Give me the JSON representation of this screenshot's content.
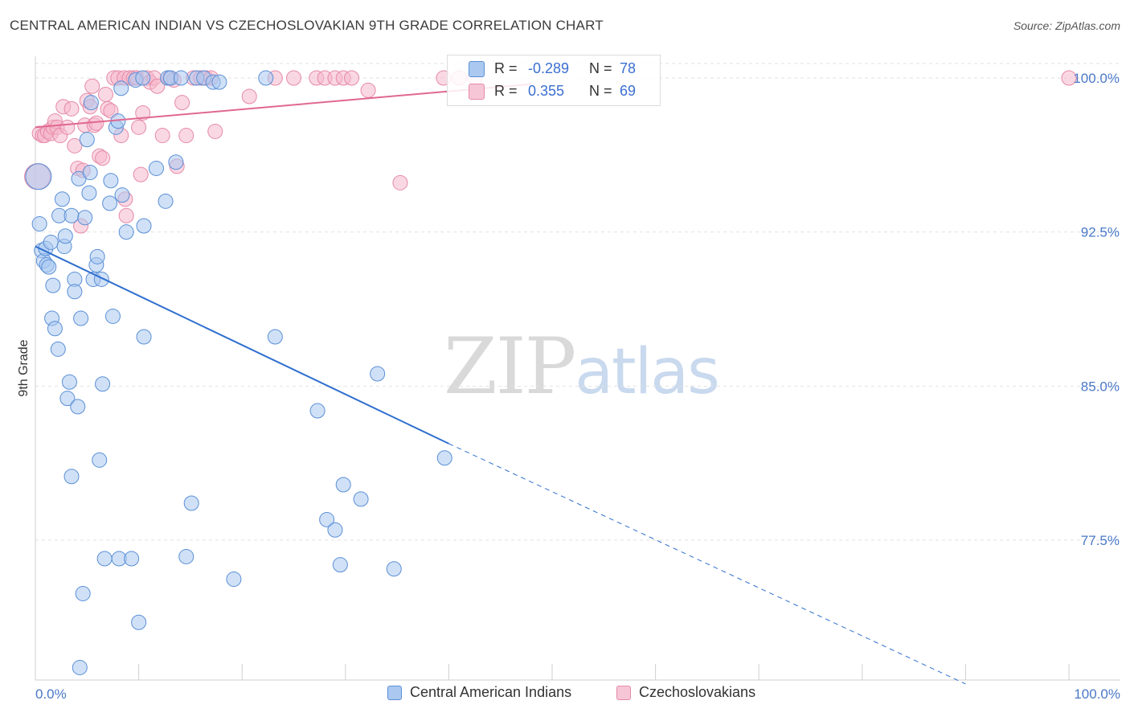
{
  "header": {
    "title": "CENTRAL AMERICAN INDIAN VS CZECHOSLOVAKIAN 9TH GRADE CORRELATION CHART",
    "source": "Source: ZipAtlas.com"
  },
  "watermark": {
    "zip": "ZIP",
    "atlas": "atlas"
  },
  "stats": {
    "blue": {
      "r_label": "R =",
      "r_value": "-0.289",
      "n_label": "N =",
      "n_value": "78"
    },
    "pink": {
      "r_label": "R =",
      "r_value": "0.355",
      "n_label": "N =",
      "n_value": "69"
    }
  },
  "legend": {
    "blue_label": "Central American Indians",
    "pink_label": "Czechoslovakians"
  },
  "colors": {
    "blue_fill": "#aac8f0",
    "blue_stroke": "#5b8fd6",
    "blue_line": "#2f6fcf",
    "pink_fill": "#f6b8cc",
    "pink_stroke": "#e58aa8",
    "pink_line": "#e06890",
    "grid": "#e2e2e2",
    "axis_label": "#4a78c8"
  },
  "chart_data": {
    "type": "scatter",
    "title": "CENTRAL AMERICAN INDIAN VS CZECHOSLOVAKIAN 9TH GRADE CORRELATION CHART",
    "xlabel": "",
    "ylabel": "9th Grade",
    "xlim": [
      0,
      100
    ],
    "ylim": [
      70.5,
      101.5
    ],
    "x_tick_labels": [
      "0.0%",
      "100.0%"
    ],
    "y_ticks": [
      77.5,
      85.0,
      92.5,
      100.0
    ],
    "y_tick_labels": [
      "77.5%",
      "85.0%",
      "92.5%",
      "100.0%"
    ],
    "grid": true,
    "legend_position": "bottom-center",
    "series": [
      {
        "name": "Central American Indians",
        "r": -0.289,
        "n": 78,
        "trend": {
          "x0": 0,
          "y0": 91.8,
          "x1": 40,
          "y1": 82.2,
          "dash_to_x": 90,
          "dash_to_y": 70.5
        },
        "points": [
          [
            0.4,
            92.9
          ],
          [
            0.6,
            91.6
          ],
          [
            0.8,
            91.1
          ],
          [
            1.0,
            91.7
          ],
          [
            1.1,
            90.9
          ],
          [
            1.3,
            90.8
          ],
          [
            1.5,
            92.0
          ],
          [
            1.7,
            89.9
          ],
          [
            1.6,
            88.3
          ],
          [
            1.9,
            87.8
          ],
          [
            2.2,
            86.8
          ],
          [
            2.3,
            93.3
          ],
          [
            2.6,
            94.1
          ],
          [
            2.8,
            91.8
          ],
          [
            2.9,
            92.3
          ],
          [
            3.1,
            84.4
          ],
          [
            3.3,
            85.2
          ],
          [
            3.5,
            80.6
          ],
          [
            3.5,
            93.3
          ],
          [
            3.8,
            90.2
          ],
          [
            3.8,
            89.6
          ],
          [
            4.1,
            84.0
          ],
          [
            4.2,
            95.1
          ],
          [
            4.4,
            88.3
          ],
          [
            4.6,
            74.9
          ],
          [
            4.3,
            71.3
          ],
          [
            4.8,
            93.2
          ],
          [
            5.0,
            97.0
          ],
          [
            5.2,
            94.4
          ],
          [
            5.3,
            95.4
          ],
          [
            5.4,
            98.8
          ],
          [
            5.6,
            90.2
          ],
          [
            5.9,
            90.9
          ],
          [
            6.0,
            91.3
          ],
          [
            6.2,
            81.4
          ],
          [
            6.4,
            90.2
          ],
          [
            6.5,
            85.1
          ],
          [
            6.7,
            76.6
          ],
          [
            7.2,
            93.9
          ],
          [
            7.3,
            95.0
          ],
          [
            7.5,
            88.4
          ],
          [
            7.8,
            97.6
          ],
          [
            8.0,
            97.9
          ],
          [
            8.1,
            76.6
          ],
          [
            8.3,
            99.5
          ],
          [
            8.4,
            94.3
          ],
          [
            8.8,
            92.5
          ],
          [
            9.3,
            76.6
          ],
          [
            9.7,
            99.9
          ],
          [
            10.0,
            73.5
          ],
          [
            10.4,
            100.0
          ],
          [
            10.5,
            92.8
          ],
          [
            10.5,
            87.4
          ],
          [
            11.7,
            95.6
          ],
          [
            12.6,
            94.0
          ],
          [
            12.8,
            100.0
          ],
          [
            13.1,
            100.0
          ],
          [
            13.6,
            95.9
          ],
          [
            14.1,
            100.0
          ],
          [
            14.6,
            76.7
          ],
          [
            15.1,
            79.3
          ],
          [
            15.6,
            100.0
          ],
          [
            16.3,
            100.0
          ],
          [
            17.2,
            99.8
          ],
          [
            17.8,
            99.8
          ],
          [
            19.2,
            75.6
          ],
          [
            22.3,
            100.0
          ],
          [
            23.2,
            87.4
          ],
          [
            27.3,
            83.8
          ],
          [
            28.2,
            78.5
          ],
          [
            29.0,
            78.0
          ],
          [
            29.5,
            76.3
          ],
          [
            29.8,
            80.2
          ],
          [
            31.5,
            79.5
          ],
          [
            33.1,
            85.6
          ],
          [
            34.7,
            76.1
          ],
          [
            39.6,
            81.5
          ],
          [
            0.3,
            95.2
          ]
        ]
      },
      {
        "name": "Czechoslovakians",
        "r": 0.355,
        "n": 69,
        "trend": {
          "x0": 0,
          "y0": 97.6,
          "x1": 48,
          "y1": 99.7
        },
        "points": [
          [
            0.2,
            95.2
          ],
          [
            0.4,
            97.3
          ],
          [
            0.7,
            97.2
          ],
          [
            0.9,
            97.2
          ],
          [
            1.2,
            97.4
          ],
          [
            1.5,
            97.3
          ],
          [
            1.7,
            97.6
          ],
          [
            1.9,
            97.9
          ],
          [
            2.1,
            97.6
          ],
          [
            2.4,
            97.2
          ],
          [
            2.7,
            98.6
          ],
          [
            3.1,
            97.6
          ],
          [
            3.5,
            98.5
          ],
          [
            3.8,
            96.7
          ],
          [
            4.1,
            95.6
          ],
          [
            4.4,
            92.8
          ],
          [
            4.6,
            95.5
          ],
          [
            4.8,
            97.7
          ],
          [
            5.0,
            98.9
          ],
          [
            5.3,
            98.6
          ],
          [
            5.5,
            99.6
          ],
          [
            5.7,
            97.7
          ],
          [
            5.9,
            97.8
          ],
          [
            6.2,
            96.2
          ],
          [
            6.5,
            96.1
          ],
          [
            6.8,
            99.2
          ],
          [
            7.0,
            98.5
          ],
          [
            7.3,
            98.4
          ],
          [
            7.6,
            100.0
          ],
          [
            8.0,
            100.0
          ],
          [
            8.3,
            97.2
          ],
          [
            8.6,
            100.0
          ],
          [
            8.7,
            94.1
          ],
          [
            8.8,
            93.3
          ],
          [
            9.1,
            100.0
          ],
          [
            9.5,
            100.0
          ],
          [
            9.8,
            100.0
          ],
          [
            10.0,
            97.6
          ],
          [
            10.2,
            95.3
          ],
          [
            10.4,
            98.3
          ],
          [
            10.8,
            100.0
          ],
          [
            11.1,
            99.8
          ],
          [
            11.5,
            100.0
          ],
          [
            11.8,
            99.6
          ],
          [
            12.3,
            97.2
          ],
          [
            13.0,
            100.0
          ],
          [
            13.4,
            99.9
          ],
          [
            13.7,
            95.7
          ],
          [
            14.2,
            98.8
          ],
          [
            14.6,
            97.2
          ],
          [
            15.3,
            100.0
          ],
          [
            16.0,
            100.0
          ],
          [
            16.5,
            100.0
          ],
          [
            17.0,
            100.0
          ],
          [
            17.4,
            97.4
          ],
          [
            20.7,
            99.1
          ],
          [
            23.2,
            100.0
          ],
          [
            25.0,
            100.0
          ],
          [
            27.2,
            100.0
          ],
          [
            28.0,
            100.0
          ],
          [
            29.0,
            100.0
          ],
          [
            29.8,
            100.0
          ],
          [
            30.6,
            100.0
          ],
          [
            32.2,
            99.4
          ],
          [
            35.3,
            94.9
          ],
          [
            39.5,
            100.0
          ],
          [
            41.0,
            100.0
          ],
          [
            42.5,
            100.0
          ],
          [
            100.0,
            100.0
          ]
        ]
      }
    ]
  }
}
